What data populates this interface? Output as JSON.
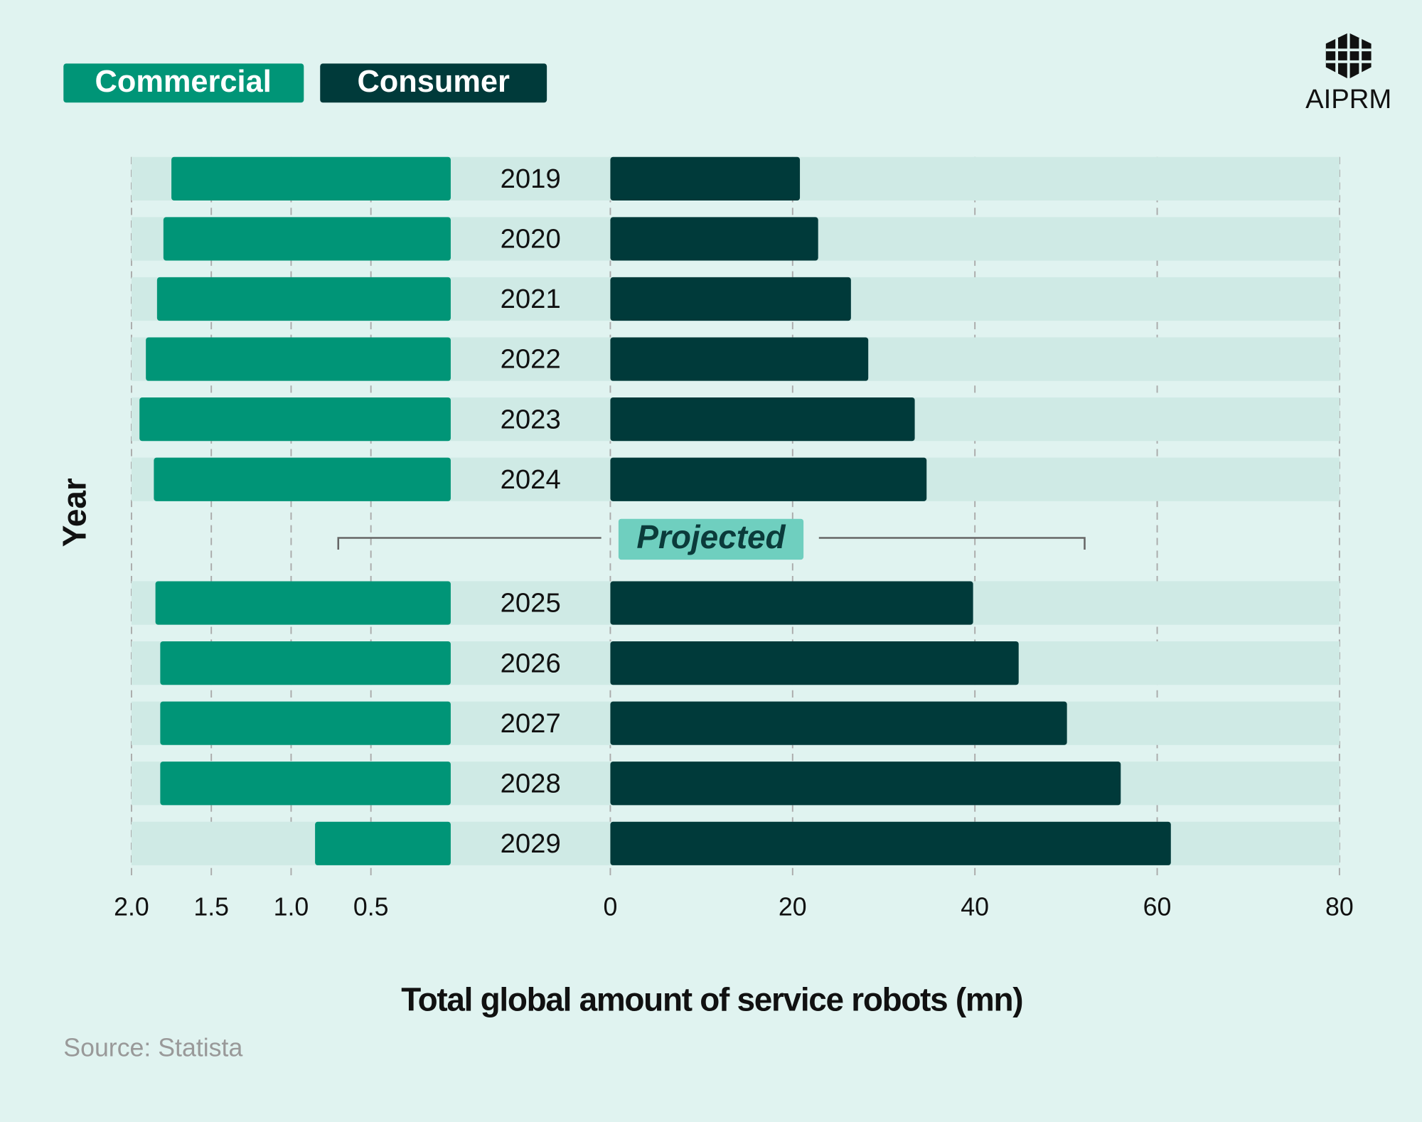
{
  "chart_data": {
    "type": "butterfly",
    "series": [
      {
        "name": "Commercial",
        "color": "#009577",
        "values": [
          1.75,
          1.8,
          1.84,
          1.91,
          1.95,
          1.86,
          1.85,
          1.82,
          1.82,
          1.82,
          0.85
        ],
        "side": "left"
      },
      {
        "name": "Consumer",
        "color": "#003a3a",
        "values": [
          20.8,
          22.8,
          26.4,
          28.3,
          33.4,
          34.7,
          39.8,
          44.8,
          50.1,
          56.0,
          61.5
        ],
        "side": "right"
      }
    ],
    "categories": [
      "2019",
      "2020",
      "2021",
      "2022",
      "2023",
      "2024",
      "2025",
      "2026",
      "2027",
      "2028",
      "2029"
    ],
    "annotation": "Projected",
    "x_label": "Total global amount of service robots (mn)",
    "y_label": "Year",
    "left_xlim": [
      2,
      0
    ],
    "left_xticks": [
      {
        "value": 2,
        "label": "2.0"
      },
      1.5,
      {
        "value": 1,
        "label": "1.0"
      },
      0.5
    ],
    "right_xlim": [
      0,
      80
    ],
    "right_xticks": [
      0,
      20,
      40,
      60,
      80
    ],
    "grid": true,
    "source": "Source: Statista",
    "brand": "AIPRM"
  }
}
